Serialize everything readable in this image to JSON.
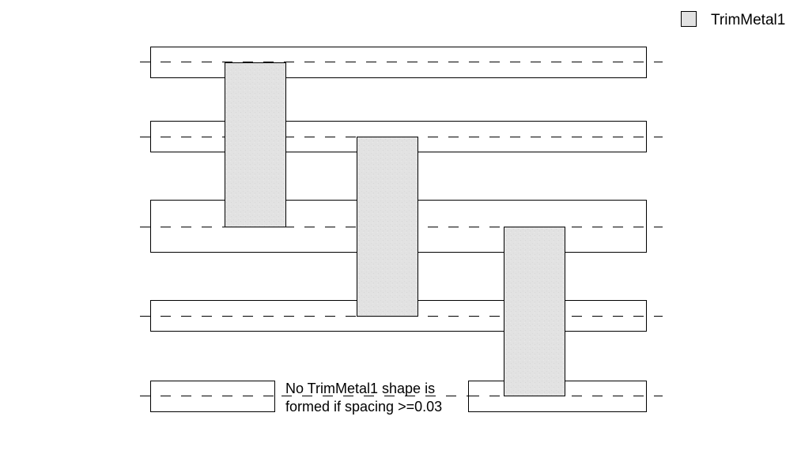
{
  "legend": {
    "label": "TrimMetal1",
    "swatch_color": "#e2e2e2"
  },
  "annotation": {
    "line1": "No TrimMetal1 shape is",
    "line2": "formed if spacing >=0.03"
  },
  "colors": {
    "trim_fill": "#e2e2e2",
    "track_fill": "#ffffff",
    "stroke": "#000000"
  },
  "metal_tracks": 5,
  "trim_shapes": 3
}
